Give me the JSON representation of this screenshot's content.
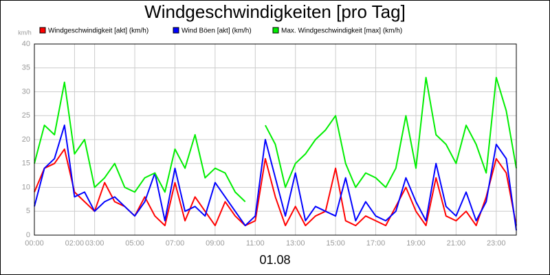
{
  "chart_data": {
    "type": "line",
    "title": "Windgeschwindigkeiten [pro Tag]",
    "y_unit": "km/h",
    "xlabel": "01.08",
    "x": [
      0,
      0.5,
      1,
      1.5,
      2,
      2.5,
      3,
      3.5,
      4,
      4.5,
      5,
      5.5,
      6,
      6.5,
      7,
      7.5,
      8,
      8.5,
      9,
      9.5,
      10,
      10.5,
      11,
      11.5,
      12,
      12.5,
      13,
      13.5,
      14,
      14.5,
      15,
      15.5,
      16,
      16.5,
      17,
      17.5,
      18,
      18.5,
      19,
      19.5,
      20,
      20.5,
      21,
      21.5,
      22,
      22.5,
      23,
      23.5,
      24
    ],
    "series": [
      {
        "name": "Windgeschwindigkeit [akt] (km/h)",
        "color": "#ff0000",
        "values": [
          9,
          14,
          15,
          18,
          9,
          7,
          5,
          11,
          7,
          6,
          4,
          8,
          4,
          2,
          11,
          3,
          8,
          5,
          2,
          7,
          4,
          2,
          3,
          16,
          8,
          2,
          6,
          2,
          4,
          5,
          14,
          3,
          2,
          4,
          3,
          2,
          6,
          10,
          5,
          2,
          12,
          4,
          3,
          5,
          2,
          8,
          16,
          13,
          2
        ]
      },
      {
        "name": "Wind Böen [akt] (km/h)",
        "color": "#0000ff",
        "values": [
          6,
          14,
          16,
          23,
          8,
          9,
          5,
          7,
          8,
          6,
          4,
          7,
          13,
          3,
          14,
          5,
          6,
          4,
          11,
          8,
          5,
          2,
          4,
          20,
          12,
          4,
          13,
          3,
          6,
          5,
          4,
          12,
          3,
          7,
          4,
          3,
          5,
          12,
          7,
          3,
          15,
          6,
          4,
          9,
          3,
          7,
          19,
          16,
          1
        ]
      },
      {
        "name": "Max. Windgeschwindigkeit [max] (km/h)",
        "color": "#00ee00",
        "values": [
          15,
          23,
          21,
          32,
          17,
          20,
          10,
          12,
          15,
          10,
          9,
          12,
          13,
          9,
          18,
          14,
          21,
          12,
          14,
          13,
          9,
          7,
          null,
          23,
          19,
          10,
          15,
          17,
          20,
          22,
          25,
          15,
          10,
          13,
          12,
          10,
          14,
          25,
          14,
          33,
          21,
          19,
          15,
          23,
          19,
          13,
          33,
          26,
          14
        ]
      }
    ],
    "xlim": [
      0,
      24
    ],
    "xticks": [
      {
        "value": 0,
        "label": "00:00"
      },
      {
        "value": 2,
        "label": "02:00"
      },
      {
        "value": 3,
        "label": "03:00"
      },
      {
        "value": 5,
        "label": "05:00"
      },
      {
        "value": 7,
        "label": "07:00"
      },
      {
        "value": 9,
        "label": "09:00"
      },
      {
        "value": 11,
        "label": "11:00"
      },
      {
        "value": 13,
        "label": "13:00"
      },
      {
        "value": 15,
        "label": "15:00"
      },
      {
        "value": 17,
        "label": "17:00"
      },
      {
        "value": 19,
        "label": "19:00"
      },
      {
        "value": 21,
        "label": "21:00"
      },
      {
        "value": 23,
        "label": "23:00"
      }
    ],
    "ylim": [
      0,
      40
    ],
    "yticks": [
      0,
      5,
      10,
      15,
      20,
      25,
      30,
      35,
      40
    ],
    "grid": true
  }
}
